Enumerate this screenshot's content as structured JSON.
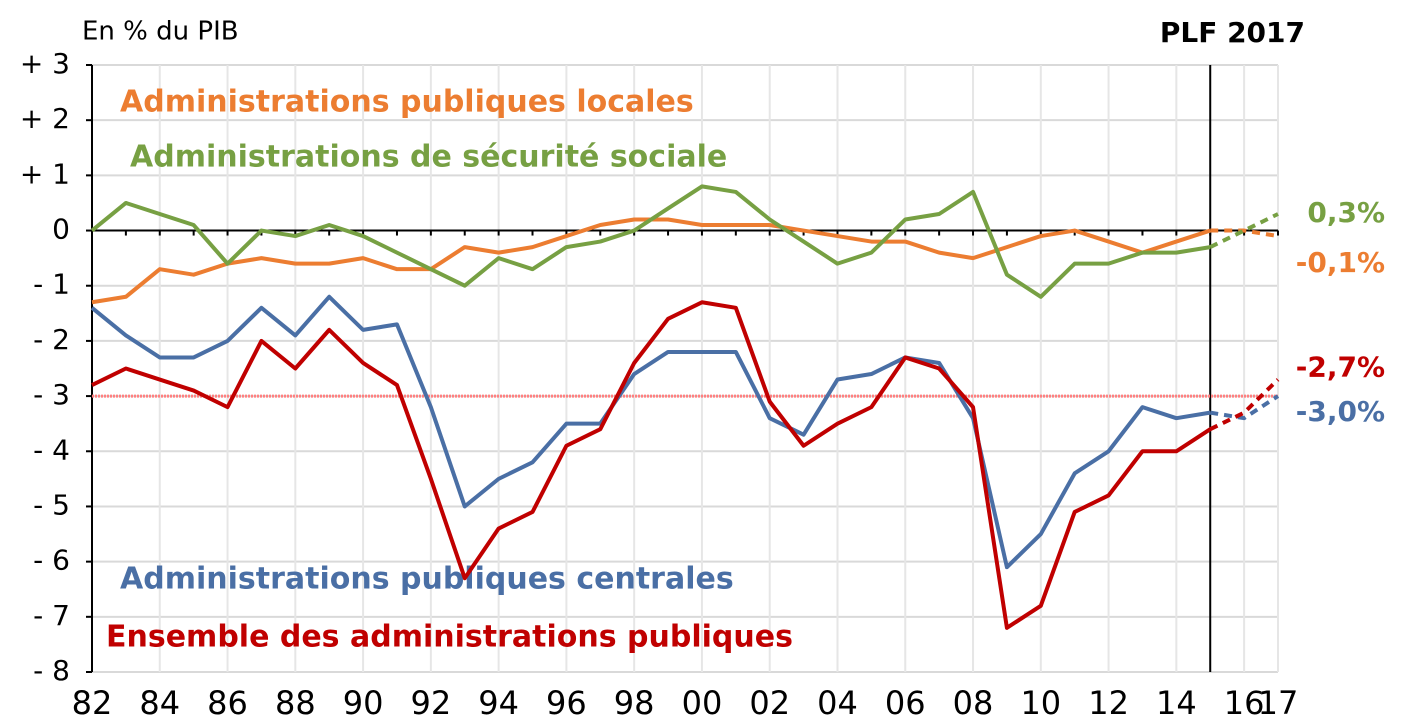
{
  "chart_data": {
    "type": "line",
    "y_axis_label": "En % du PIB",
    "annotation": "PLF 2017",
    "x": [
      1982,
      1983,
      1984,
      1985,
      1986,
      1987,
      1988,
      1989,
      1990,
      1991,
      1992,
      1993,
      1994,
      1995,
      1996,
      1997,
      1998,
      1999,
      2000,
      2001,
      2002,
      2003,
      2004,
      2005,
      2006,
      2007,
      2008,
      2009,
      2010,
      2011,
      2012,
      2013,
      2014,
      2015,
      2016,
      2017
    ],
    "projection_start": 2015,
    "xlim": [
      1982,
      2017
    ],
    "xticks": [
      {
        "value": 1982,
        "label": "82"
      },
      {
        "value": 1984,
        "label": "84"
      },
      {
        "value": 1986,
        "label": "86"
      },
      {
        "value": 1988,
        "label": "88"
      },
      {
        "value": 1990,
        "label": "90"
      },
      {
        "value": 1992,
        "label": "92"
      },
      {
        "value": 1994,
        "label": "94"
      },
      {
        "value": 1996,
        "label": "96"
      },
      {
        "value": 1998,
        "label": "98"
      },
      {
        "value": 2000,
        "label": "00"
      },
      {
        "value": 2002,
        "label": "02"
      },
      {
        "value": 2004,
        "label": "04"
      },
      {
        "value": 2006,
        "label": "06"
      },
      {
        "value": 2008,
        "label": "08"
      },
      {
        "value": 2010,
        "label": "10"
      },
      {
        "value": 2012,
        "label": "12"
      },
      {
        "value": 2014,
        "label": "14"
      },
      {
        "value": 2016,
        "label": "16"
      },
      {
        "value": 2017,
        "label": "17"
      }
    ],
    "ylim": [
      -8,
      3
    ],
    "yticks": [
      {
        "value": 3,
        "label": "+ 3"
      },
      {
        "value": 2,
        "label": "+ 2"
      },
      {
        "value": 1,
        "label": "+ 1"
      },
      0,
      {
        "value": -1,
        "label": "- 1"
      },
      {
        "value": -2,
        "label": "- 2"
      },
      {
        "value": -3,
        "label": "- 3"
      },
      {
        "value": -4,
        "label": "- 4"
      },
      {
        "value": -5,
        "label": "- 5"
      },
      {
        "value": -6,
        "label": "- 6"
      },
      {
        "value": -7,
        "label": "- 7"
      },
      {
        "value": -8,
        "label": "- 8"
      }
    ],
    "grid": true,
    "reference_line": {
      "value": -3,
      "color": "#ff8080"
    },
    "series": [
      {
        "name": "Administrations publiques locales",
        "color": "#ec7d31",
        "end_label": "-0,1%",
        "values": [
          -1.3,
          -1.2,
          -0.7,
          -0.8,
          -0.6,
          -0.5,
          -0.6,
          -0.6,
          -0.5,
          -0.7,
          -0.7,
          -0.3,
          -0.4,
          -0.3,
          -0.1,
          0.1,
          0.2,
          0.2,
          0.1,
          0.1,
          0.1,
          0.0,
          -0.1,
          -0.2,
          -0.2,
          -0.4,
          -0.5,
          -0.3,
          -0.1,
          0.0,
          -0.2,
          -0.4,
          -0.2,
          0.0,
          0.0,
          -0.1
        ]
      },
      {
        "name": "Administrations de sécurité sociale",
        "color": "#77a043",
        "end_label": "0,3%",
        "values": [
          0.0,
          0.5,
          0.3,
          0.1,
          -0.6,
          0.0,
          -0.1,
          0.1,
          -0.1,
          -0.4,
          -0.7,
          -1.0,
          -0.5,
          -0.7,
          -0.3,
          -0.2,
          0.0,
          0.4,
          0.8,
          0.7,
          0.2,
          -0.2,
          -0.6,
          -0.4,
          0.2,
          0.3,
          0.7,
          -0.8,
          -1.2,
          -0.6,
          -0.6,
          -0.4,
          -0.4,
          -0.3,
          0.0,
          0.3
        ]
      },
      {
        "name": "Administrations publiques centrales",
        "color": "#4a6fa5",
        "end_label": "-3,0%",
        "values": [
          -1.4,
          -1.9,
          -2.3,
          -2.3,
          -2.0,
          -1.4,
          -1.9,
          -1.2,
          -1.8,
          -1.7,
          -3.2,
          -5.0,
          -4.5,
          -4.2,
          -3.5,
          -3.5,
          -2.6,
          -2.2,
          -2.2,
          -2.2,
          -3.4,
          -3.7,
          -2.7,
          -2.6,
          -2.3,
          -2.4,
          -3.4,
          -6.1,
          -5.5,
          -4.4,
          -4.0,
          -3.2,
          -3.4,
          -3.3,
          -3.4,
          -3.0
        ]
      },
      {
        "name": "Ensemble des administrations publiques",
        "color": "#c00000",
        "end_label": "-2,7%",
        "values": [
          -2.8,
          -2.5,
          -2.7,
          -2.9,
          -3.2,
          -2.0,
          -2.5,
          -1.8,
          -2.4,
          -2.8,
          -4.5,
          -6.3,
          -5.4,
          -5.1,
          -3.9,
          -3.6,
          -2.4,
          -1.6,
          -1.3,
          -1.4,
          -3.1,
          -3.9,
          -3.5,
          -3.2,
          -2.3,
          -2.5,
          -3.2,
          -7.2,
          -6.8,
          -5.1,
          -4.8,
          -4.0,
          -4.0,
          -3.6,
          -3.3,
          -2.7
        ]
      }
    ]
  }
}
